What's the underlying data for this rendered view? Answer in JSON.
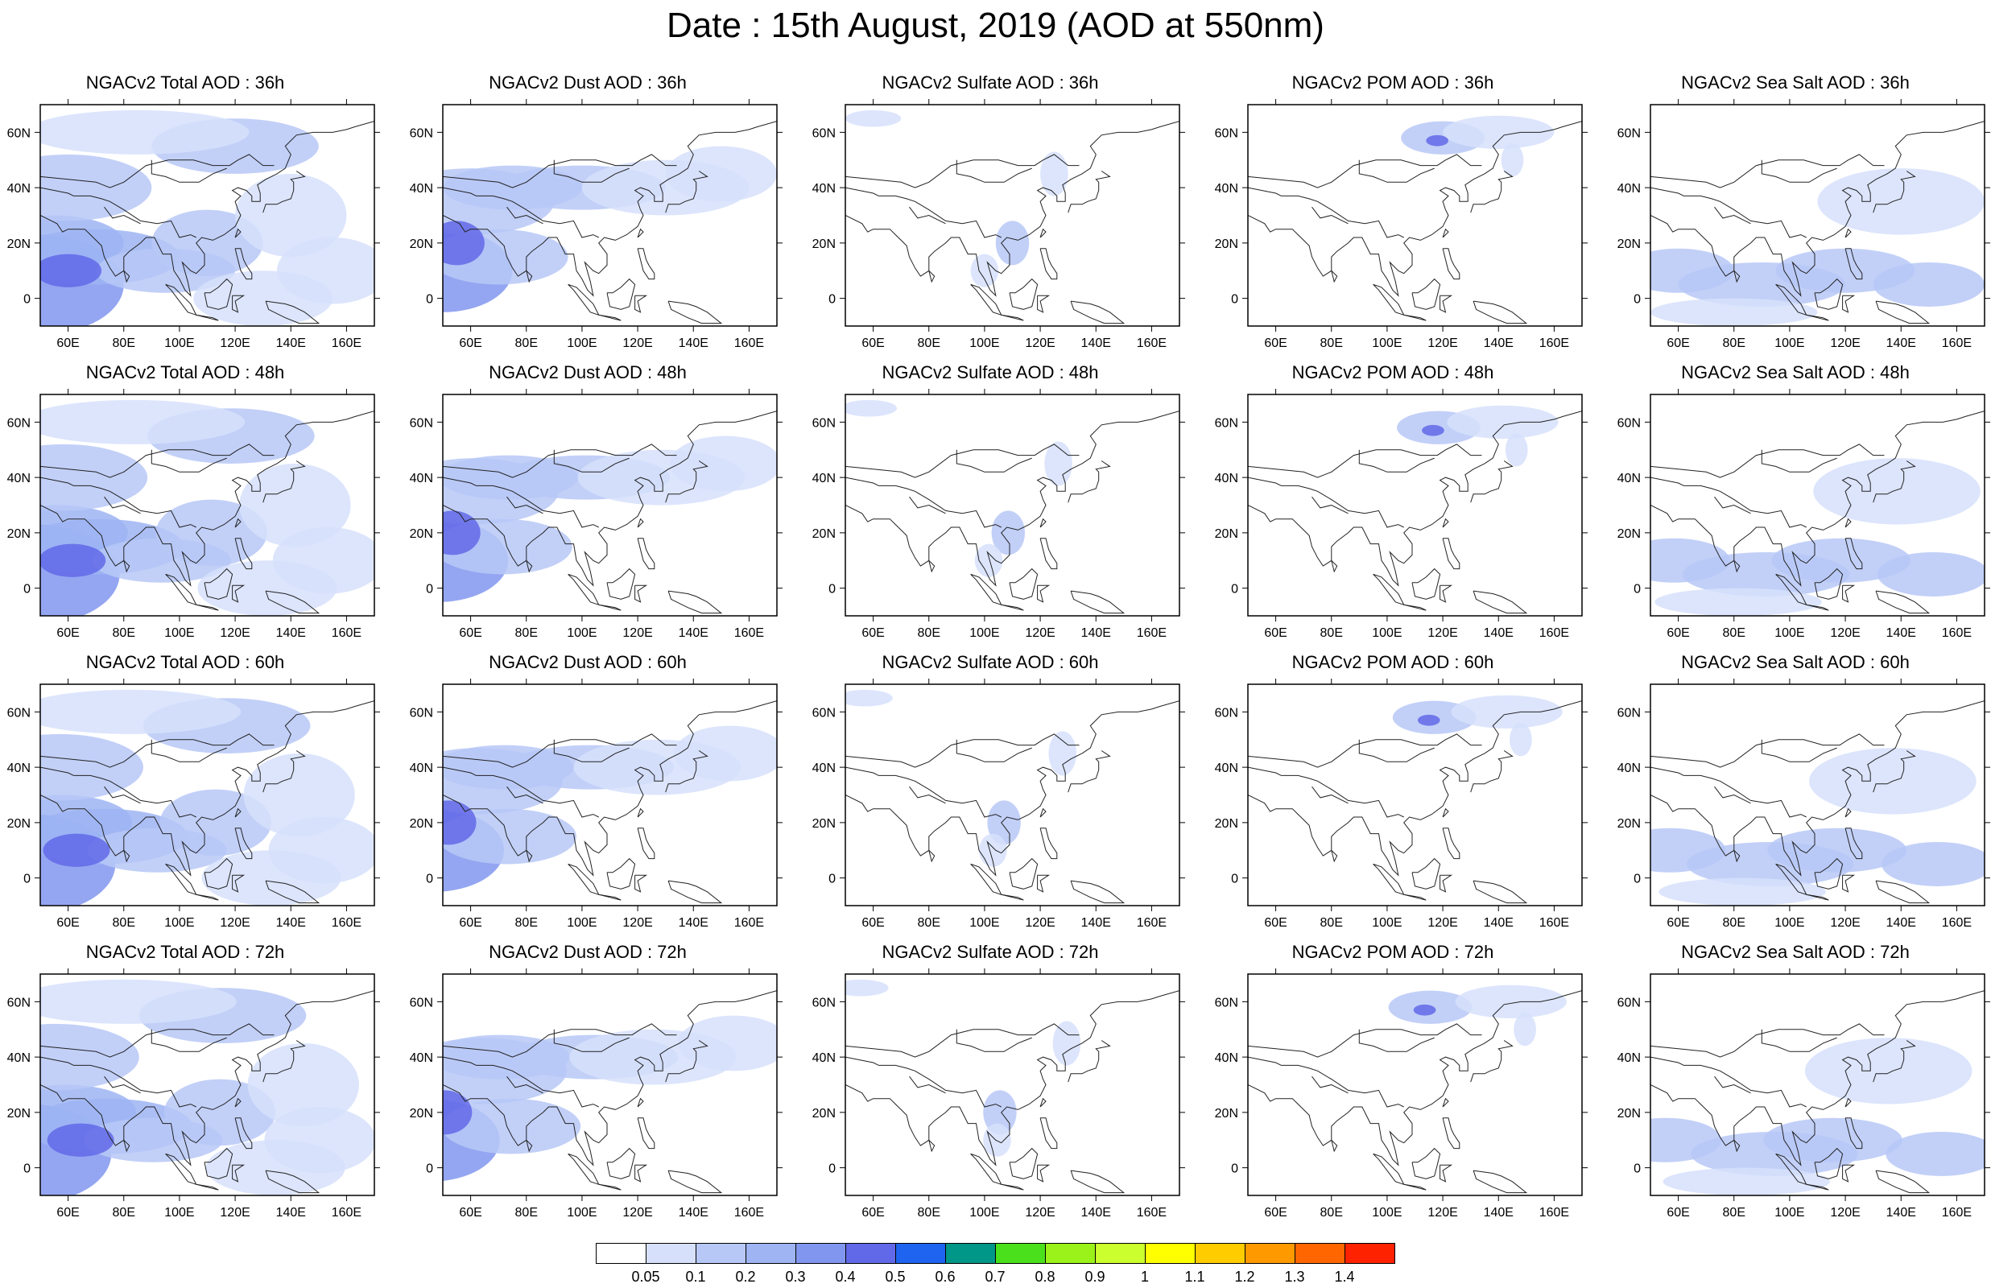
{
  "title": "Date : 15th August, 2019 (AOD at 550nm)",
  "panels": [
    [
      "NGACv2 Total AOD : 36h",
      "NGACv2 Dust AOD : 36h",
      "NGACv2 Sulfate AOD : 36h",
      "NGACv2 POM AOD : 36h",
      "NGACv2 Sea Salt AOD : 36h"
    ],
    [
      "NGACv2 Total AOD : 48h",
      "NGACv2 Dust AOD : 48h",
      "NGACv2 Sulfate AOD : 48h",
      "NGACv2 POM AOD : 48h",
      "NGACv2 Sea Salt AOD : 48h"
    ],
    [
      "NGACv2 Total AOD : 60h",
      "NGACv2 Dust AOD : 60h",
      "NGACv2 Sulfate AOD : 60h",
      "NGACv2 POM AOD : 60h",
      "NGACv2 Sea Salt AOD : 60h"
    ],
    [
      "NGACv2 Total AOD : 72h",
      "NGACv2 Dust AOD : 72h",
      "NGACv2 Sulfate AOD : 72h",
      "NGACv2 POM AOD : 72h",
      "NGACv2 Sea Salt  AOD : 72h"
    ]
  ],
  "map_axes": {
    "lon_range": [
      50,
      170
    ],
    "lat_range": [
      -10,
      70
    ],
    "lon_ticks": [
      "60E",
      "80E",
      "100E",
      "120E",
      "140E",
      "160E"
    ],
    "lon_tick_values": [
      60,
      80,
      100,
      120,
      140,
      160
    ],
    "lat_ticks": [
      "60N",
      "40N",
      "20N",
      "0"
    ],
    "lat_tick_values": [
      60,
      40,
      20,
      0
    ]
  },
  "colorbar": {
    "labels": [
      "0.05",
      "0.1",
      "0.2",
      "0.3",
      "0.4",
      "0.5",
      "0.6",
      "0.7",
      "0.8",
      "0.9",
      "1",
      "1.1",
      "1.2",
      "1.3",
      "1.4"
    ],
    "colors": [
      "#ffffff",
      "#d6e0fb",
      "#b7c8f7",
      "#9eb4f3",
      "#8197ef",
      "#6269e8",
      "#1e64f0",
      "#009688",
      "#4be01c",
      "#9bf21a",
      "#ccff2e",
      "#ffff00",
      "#ffcc00",
      "#ff9900",
      "#ff6600",
      "#ff2200"
    ]
  }
}
